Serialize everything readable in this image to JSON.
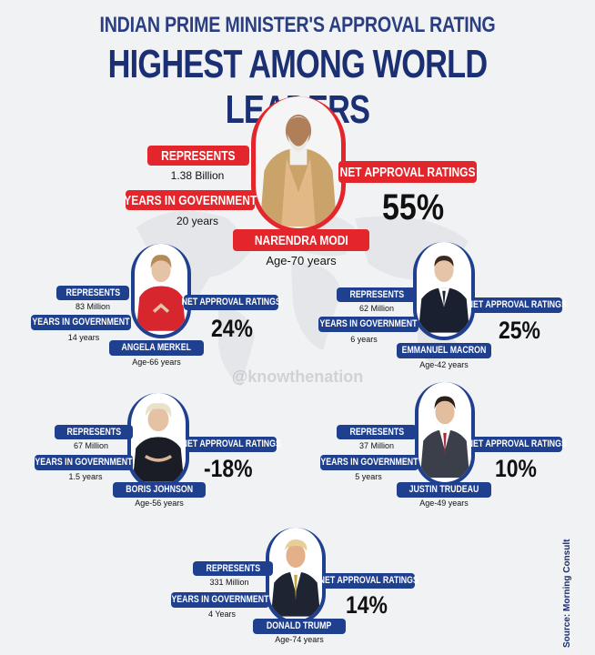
{
  "header": {
    "line1": "INDIAN PRIME MINISTER'S APPROVAL RATING",
    "line2": "HIGHEST AMONG WORLD LEADERS"
  },
  "watermark": "@knowthenation",
  "source": "Source: Morning Consult",
  "labels": {
    "represents": "REPRESENTS",
    "years": "YEARS IN GOVERNMENT",
    "approval": "NET APPROVAL RATINGS"
  },
  "leaders": {
    "modi": {
      "name": "NARENDRA MODI",
      "age": "Age-70 years",
      "represents": "1.38 Billion",
      "years": "20 years",
      "rating": "55%"
    },
    "merkel": {
      "name": "ANGELA MERKEL",
      "age": "Age-66 years",
      "represents": "83 Million",
      "years": "14 years",
      "rating": "24%"
    },
    "macron": {
      "name": "EMMANUEL MACRON",
      "age": "Age-42 years",
      "represents": "62 Million",
      "years": "6 years",
      "rating": "25%"
    },
    "johnson": {
      "name": "BORIS JOHNSON",
      "age": "Age-56 years",
      "represents": "67 Million",
      "years": "1.5 years",
      "rating": "-18%"
    },
    "trudeau": {
      "name": "JUSTIN TRUDEAU",
      "age": "Age-49 years",
      "represents": "37 Million",
      "years": "5 years",
      "rating": "10%"
    },
    "trump": {
      "name": "DONALD TRUMP",
      "age": "Age-74 years",
      "represents": "331 Million",
      "years": "4 Years",
      "rating": "14%"
    }
  },
  "colors": {
    "accent_red": "#e3262b",
    "accent_blue": "#1f3f8f",
    "title_blue": "#1b2f74"
  }
}
